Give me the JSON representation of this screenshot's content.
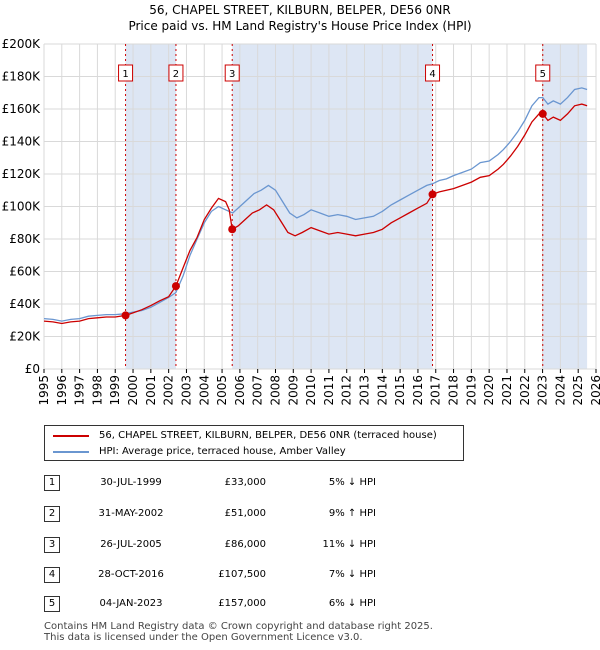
{
  "title": {
    "line1": "56, CHAPEL STREET, KILBURN, BELPER, DE56 0NR",
    "line2": "Price paid vs. HM Land Registry's House Price Index (HPI)"
  },
  "colors": {
    "property": "#cc0000",
    "hpi": "#6a96d0",
    "shade": "#dde6f4",
    "marker": "#cc0000",
    "grid": "#d9d9d9"
  },
  "legend": {
    "property_label": "56, CHAPEL STREET, KILBURN, BELPER, DE56 0NR (terraced house)",
    "hpi_label": "HPI: Average price, terraced house, Amber Valley"
  },
  "sales": [
    {
      "num": "1",
      "date": "30-JUL-1999",
      "price": "£33,000",
      "hpi": "5% ↓ HPI"
    },
    {
      "num": "2",
      "date": "31-MAY-2002",
      "price": "£51,000",
      "hpi": "9% ↑ HPI"
    },
    {
      "num": "3",
      "date": "26-JUL-2005",
      "price": "£86,000",
      "hpi": "11% ↓ HPI"
    },
    {
      "num": "4",
      "date": "28-OCT-2016",
      "price": "£107,500",
      "hpi": "7% ↓ HPI"
    },
    {
      "num": "5",
      "date": "04-JAN-2023",
      "price": "£157,000",
      "hpi": "6% ↓ HPI"
    }
  ],
  "footer": {
    "line1": "Contains HM Land Registry data © Crown copyright and database right 2025.",
    "line2": "This data is licensed under the Open Government Licence v3.0."
  },
  "chart_data": {
    "type": "line",
    "title": "56, CHAPEL STREET, KILBURN, BELPER, DE56 0NR — Price paid vs. HM Land Registry's House Price Index (HPI)",
    "xlabel": "",
    "ylabel": "",
    "xlim": [
      1995,
      2026
    ],
    "ylim": [
      0,
      200000
    ],
    "x_ticks": [
      "1995",
      "1996",
      "1997",
      "1998",
      "1999",
      "2000",
      "2001",
      "2002",
      "2003",
      "2004",
      "2005",
      "2006",
      "2007",
      "2008",
      "2009",
      "2010",
      "2011",
      "2012",
      "2013",
      "2014",
      "2015",
      "2016",
      "2017",
      "2018",
      "2019",
      "2020",
      "2021",
      "2022",
      "2023",
      "2024",
      "2025",
      "2026"
    ],
    "y_ticks": [
      {
        "value": 0,
        "label": "£0"
      },
      {
        "value": 20000,
        "label": "£20K"
      },
      {
        "value": 40000,
        "label": "£40K"
      },
      {
        "value": 60000,
        "label": "£60K"
      },
      {
        "value": 80000,
        "label": "£80K"
      },
      {
        "value": 100000,
        "label": "£100K"
      },
      {
        "value": 120000,
        "label": "£120K"
      },
      {
        "value": 140000,
        "label": "£140K"
      },
      {
        "value": 160000,
        "label": "£160K"
      },
      {
        "value": 180000,
        "label": "£180K"
      },
      {
        "value": 200000,
        "label": "£200K"
      }
    ],
    "shaded_ranges": [
      [
        1999.58,
        2002.41
      ],
      [
        2005.57,
        2016.82
      ],
      [
        2023.01,
        2025.5
      ]
    ],
    "sale_markers": [
      {
        "label": "1",
        "x": 1999.58,
        "y": 33000
      },
      {
        "label": "2",
        "x": 2002.41,
        "y": 51000
      },
      {
        "label": "3",
        "x": 2005.57,
        "y": 86000
      },
      {
        "label": "4",
        "x": 2016.82,
        "y": 107500
      },
      {
        "label": "5",
        "x": 2023.01,
        "y": 157000
      }
    ],
    "series": [
      {
        "name": "HPI: Average price, terraced house, Amber Valley",
        "points": [
          [
            1995.0,
            31000
          ],
          [
            1995.5,
            30500
          ],
          [
            1996.0,
            29500
          ],
          [
            1996.5,
            30500
          ],
          [
            1997.0,
            31000
          ],
          [
            1997.5,
            32500
          ],
          [
            1998.0,
            33000
          ],
          [
            1998.5,
            33500
          ],
          [
            1999.0,
            33500
          ],
          [
            1999.5,
            34000
          ],
          [
            2000.0,
            35000
          ],
          [
            2000.5,
            36000
          ],
          [
            2001.0,
            38000
          ],
          [
            2001.5,
            41000
          ],
          [
            2002.0,
            44000
          ],
          [
            2002.4,
            47000
          ],
          [
            2002.8,
            57000
          ],
          [
            2003.2,
            70000
          ],
          [
            2003.6,
            80000
          ],
          [
            2004.0,
            90000
          ],
          [
            2004.4,
            97000
          ],
          [
            2004.8,
            100000
          ],
          [
            2005.2,
            98000
          ],
          [
            2005.6,
            96000
          ],
          [
            2006.0,
            100000
          ],
          [
            2006.4,
            104000
          ],
          [
            2006.8,
            108000
          ],
          [
            2007.2,
            110000
          ],
          [
            2007.6,
            113000
          ],
          [
            2008.0,
            110000
          ],
          [
            2008.4,
            103000
          ],
          [
            2008.8,
            96000
          ],
          [
            2009.2,
            93000
          ],
          [
            2009.6,
            95000
          ],
          [
            2010.0,
            98000
          ],
          [
            2010.5,
            96000
          ],
          [
            2011.0,
            94000
          ],
          [
            2011.5,
            95000
          ],
          [
            2012.0,
            94000
          ],
          [
            2012.5,
            92000
          ],
          [
            2013.0,
            93000
          ],
          [
            2013.5,
            94000
          ],
          [
            2014.0,
            97000
          ],
          [
            2014.5,
            101000
          ],
          [
            2015.0,
            104000
          ],
          [
            2015.5,
            107000
          ],
          [
            2016.0,
            110000
          ],
          [
            2016.5,
            113000
          ],
          [
            2016.82,
            114000
          ],
          [
            2017.2,
            116000
          ],
          [
            2017.6,
            117000
          ],
          [
            2018.0,
            119000
          ],
          [
            2018.5,
            121000
          ],
          [
            2019.0,
            123000
          ],
          [
            2019.5,
            127000
          ],
          [
            2020.0,
            128000
          ],
          [
            2020.5,
            132000
          ],
          [
            2020.8,
            135000
          ],
          [
            2021.2,
            140000
          ],
          [
            2021.6,
            146000
          ],
          [
            2022.0,
            153000
          ],
          [
            2022.4,
            162000
          ],
          [
            2022.8,
            167000
          ],
          [
            2023.01,
            167000
          ],
          [
            2023.3,
            163000
          ],
          [
            2023.6,
            165000
          ],
          [
            2024.0,
            163000
          ],
          [
            2024.4,
            167000
          ],
          [
            2024.8,
            172000
          ],
          [
            2025.2,
            173000
          ],
          [
            2025.5,
            172000
          ]
        ]
      },
      {
        "name": "56, CHAPEL STREET, KILBURN, BELPER, DE56 0NR (terraced house)",
        "points": [
          [
            1995.0,
            29500
          ],
          [
            1995.5,
            29000
          ],
          [
            1996.0,
            28000
          ],
          [
            1996.5,
            29000
          ],
          [
            1997.0,
            29500
          ],
          [
            1997.5,
            31000
          ],
          [
            1998.0,
            31500
          ],
          [
            1998.5,
            32000
          ],
          [
            1999.0,
            32000
          ],
          [
            1999.58,
            33000
          ],
          [
            2000.0,
            34500
          ],
          [
            2000.5,
            36500
          ],
          [
            2001.0,
            39000
          ],
          [
            2001.5,
            42000
          ],
          [
            2002.0,
            44500
          ],
          [
            2002.41,
            51000
          ],
          [
            2002.8,
            62000
          ],
          [
            2003.2,
            73000
          ],
          [
            2003.6,
            81000
          ],
          [
            2004.0,
            92000
          ],
          [
            2004.4,
            99000
          ],
          [
            2004.8,
            105000
          ],
          [
            2005.2,
            103000
          ],
          [
            2005.4,
            98000
          ],
          [
            2005.57,
            86000
          ],
          [
            2005.9,
            88000
          ],
          [
            2006.3,
            92000
          ],
          [
            2006.7,
            96000
          ],
          [
            2007.1,
            98000
          ],
          [
            2007.5,
            101000
          ],
          [
            2007.9,
            98000
          ],
          [
            2008.3,
            91000
          ],
          [
            2008.7,
            84000
          ],
          [
            2009.1,
            82000
          ],
          [
            2009.5,
            84000
          ],
          [
            2010.0,
            87000
          ],
          [
            2010.5,
            85000
          ],
          [
            2011.0,
            83000
          ],
          [
            2011.5,
            84000
          ],
          [
            2012.0,
            83000
          ],
          [
            2012.5,
            82000
          ],
          [
            2013.0,
            83000
          ],
          [
            2013.5,
            84000
          ],
          [
            2014.0,
            86000
          ],
          [
            2014.5,
            90000
          ],
          [
            2015.0,
            93000
          ],
          [
            2015.5,
            96000
          ],
          [
            2016.0,
            99000
          ],
          [
            2016.5,
            102000
          ],
          [
            2016.82,
            107500
          ],
          [
            2017.2,
            109000
          ],
          [
            2017.6,
            110000
          ],
          [
            2018.0,
            111000
          ],
          [
            2018.5,
            113000
          ],
          [
            2019.0,
            115000
          ],
          [
            2019.5,
            118000
          ],
          [
            2020.0,
            119000
          ],
          [
            2020.5,
            123000
          ],
          [
            2020.8,
            126000
          ],
          [
            2021.2,
            131000
          ],
          [
            2021.6,
            137000
          ],
          [
            2022.0,
            144000
          ],
          [
            2022.4,
            152000
          ],
          [
            2022.8,
            157000
          ],
          [
            2023.01,
            157000
          ],
          [
            2023.3,
            153000
          ],
          [
            2023.6,
            155000
          ],
          [
            2024.0,
            153000
          ],
          [
            2024.4,
            157000
          ],
          [
            2024.8,
            162000
          ],
          [
            2025.2,
            163000
          ],
          [
            2025.5,
            162000
          ]
        ]
      }
    ]
  }
}
